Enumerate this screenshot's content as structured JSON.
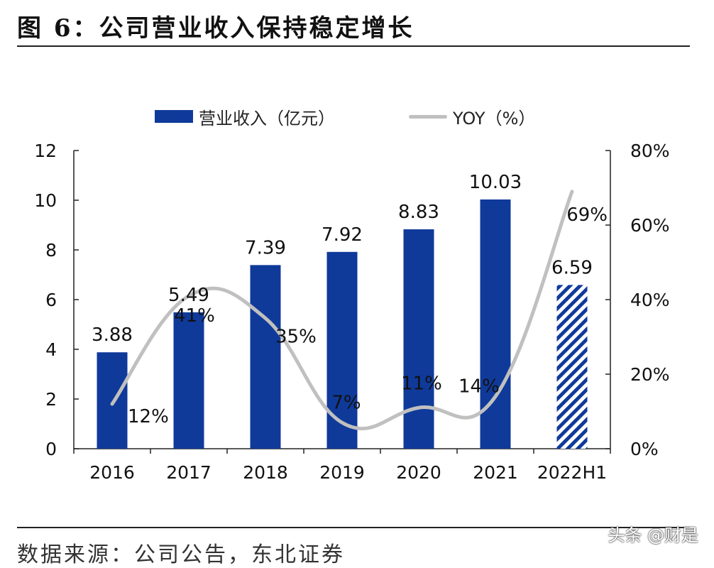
{
  "header": {
    "title": "图 6：公司营业收入保持稳定增长"
  },
  "footer": {
    "source": "数据来源：公司公告，东北证券",
    "watermark": "头条 @财是"
  },
  "colors": {
    "bar": "#0f3a9a",
    "line": "#c0c0c0",
    "axis": "#222222"
  },
  "chart_data": {
    "type": "bar",
    "title": "图 6：公司营业收入保持稳定增长",
    "categories": [
      "2016",
      "2017",
      "2018",
      "2019",
      "2020",
      "2021",
      "2022H1"
    ],
    "series": [
      {
        "name": "营业收入（亿元）",
        "type": "bar",
        "axis": "left",
        "values": [
          3.88,
          5.49,
          7.39,
          7.92,
          8.83,
          10.03,
          6.59
        ],
        "labels": [
          "3.88",
          "5.49",
          "7.39",
          "7.92",
          "8.83",
          "10.03",
          "6.59"
        ],
        "hatched_last": true
      },
      {
        "name": "YOY（%）",
        "type": "line",
        "axis": "right",
        "smooth": true,
        "values": [
          12,
          41,
          35,
          7,
          11,
          14,
          69
        ],
        "labels": [
          "12%",
          "41%",
          "35%",
          "7%",
          "11%",
          "14%",
          "69%"
        ]
      }
    ],
    "left_axis": {
      "range": [
        0,
        12
      ],
      "ticks": [
        "0",
        "2",
        "4",
        "6",
        "8",
        "10",
        "12"
      ]
    },
    "right_axis": {
      "range": [
        0,
        80
      ],
      "ticks": [
        "0%",
        "20%",
        "40%",
        "60%",
        "80%"
      ]
    },
    "legend": {
      "position": "top",
      "bar_label": "营业收入（亿元）",
      "line_label": "YOY（%）"
    },
    "grid": false
  }
}
